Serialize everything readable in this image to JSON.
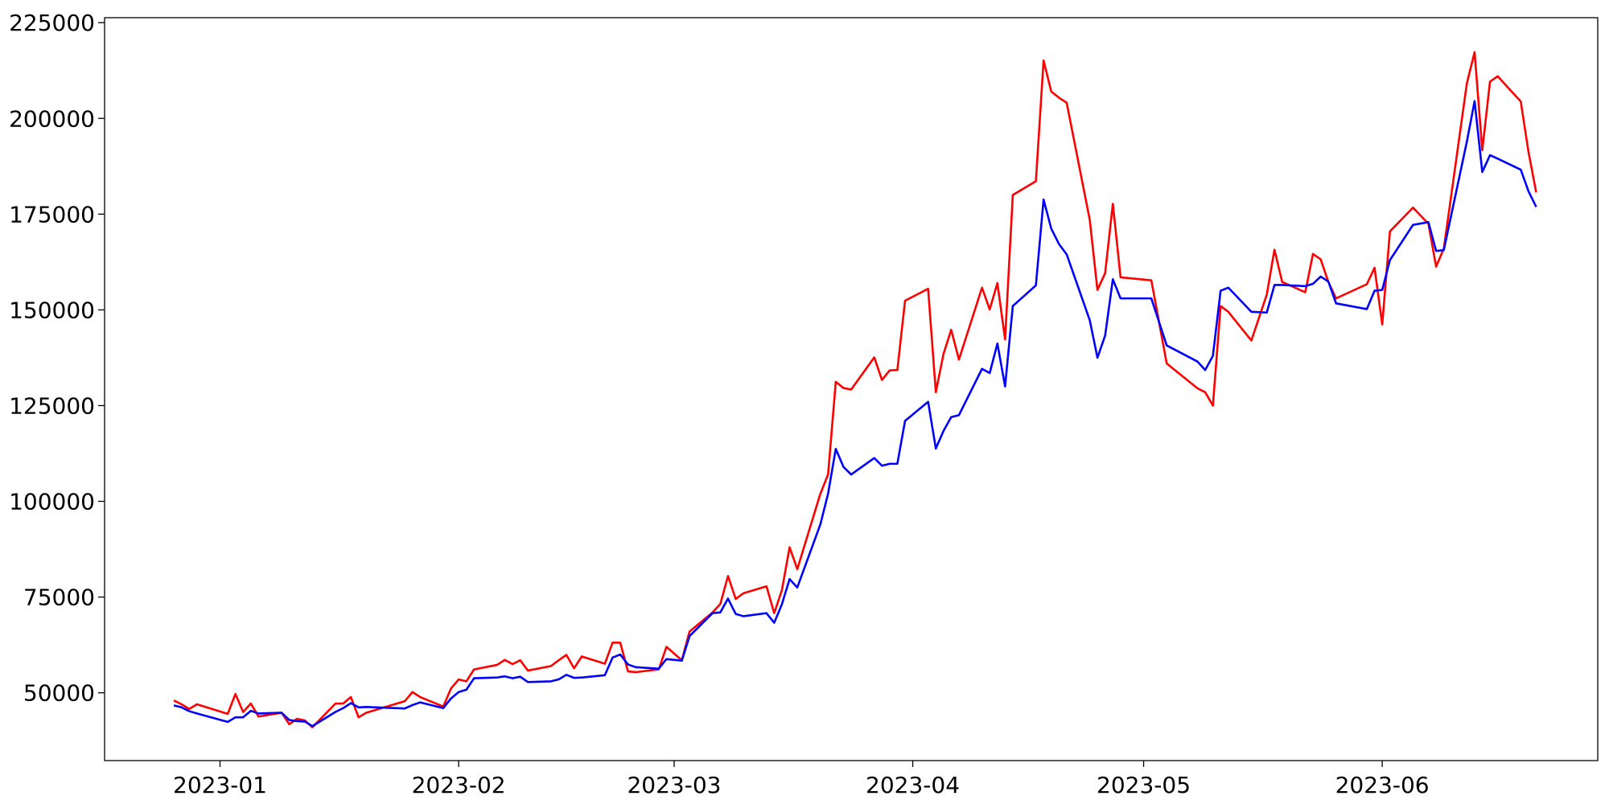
{
  "chart_data": {
    "type": "line",
    "x": [
      "2022-12-26",
      "2022-12-27",
      "2022-12-28",
      "2022-12-29",
      "2023-01-02",
      "2023-01-03",
      "2023-01-04",
      "2023-01-05",
      "2023-01-06",
      "2023-01-09",
      "2023-01-10",
      "2023-01-11",
      "2023-01-12",
      "2023-01-13",
      "2023-01-16",
      "2023-01-17",
      "2023-01-18",
      "2023-01-19",
      "2023-01-20",
      "2023-01-25",
      "2023-01-26",
      "2023-01-27",
      "2023-01-30",
      "2023-01-31",
      "2023-02-01",
      "2023-02-02",
      "2023-02-03",
      "2023-02-06",
      "2023-02-07",
      "2023-02-08",
      "2023-02-09",
      "2023-02-10",
      "2023-02-13",
      "2023-02-14",
      "2023-02-15",
      "2023-02-16",
      "2023-02-17",
      "2023-02-20",
      "2023-02-21",
      "2023-02-22",
      "2023-02-23",
      "2023-02-24",
      "2023-02-27",
      "2023-02-28",
      "2023-03-02",
      "2023-03-03",
      "2023-03-06",
      "2023-03-07",
      "2023-03-08",
      "2023-03-09",
      "2023-03-10",
      "2023-03-13",
      "2023-03-14",
      "2023-03-15",
      "2023-03-16",
      "2023-03-17",
      "2023-03-20",
      "2023-03-21",
      "2023-03-22",
      "2023-03-23",
      "2023-03-24",
      "2023-03-27",
      "2023-03-28",
      "2023-03-29",
      "2023-03-30",
      "2023-03-31",
      "2023-04-03",
      "2023-04-04",
      "2023-04-05",
      "2023-04-06",
      "2023-04-07",
      "2023-04-10",
      "2023-04-11",
      "2023-04-12",
      "2023-04-13",
      "2023-04-14",
      "2023-04-17",
      "2023-04-18",
      "2023-04-19",
      "2023-04-20",
      "2023-04-21",
      "2023-04-24",
      "2023-04-25",
      "2023-04-26",
      "2023-04-27",
      "2023-04-28",
      "2023-05-02",
      "2023-05-04",
      "2023-05-08",
      "2023-05-09",
      "2023-05-10",
      "2023-05-11",
      "2023-05-12",
      "2023-05-15",
      "2023-05-17",
      "2023-05-18",
      "2023-05-19",
      "2023-05-22",
      "2023-05-23",
      "2023-05-24",
      "2023-05-25",
      "2023-05-26",
      "2023-05-30",
      "2023-05-31",
      "2023-06-01",
      "2023-06-02",
      "2023-06-05",
      "2023-06-07",
      "2023-06-08",
      "2023-06-09",
      "2023-06-12",
      "2023-06-13",
      "2023-06-14",
      "2023-06-15",
      "2023-06-16",
      "2023-06-19",
      "2023-06-20",
      "2023-06-21"
    ],
    "series": [
      {
        "color": "#ff0000",
        "values": [
          48000,
          47000,
          45800,
          47000,
          44500,
          49700,
          45000,
          47200,
          43800,
          44800,
          41800,
          43200,
          42800,
          41000,
          47200,
          47200,
          48900,
          43600,
          44800,
          47800,
          50200,
          48900,
          46400,
          51100,
          53500,
          53000,
          56100,
          57300,
          58600,
          57500,
          58500,
          55800,
          57000,
          58500,
          59900,
          56400,
          59500,
          57600,
          63100,
          63100,
          55600,
          55400,
          56100,
          62000,
          58500,
          66000,
          71000,
          73200,
          80500,
          74500,
          76000,
          77800,
          70800,
          76800,
          88000,
          82300,
          102000,
          107000,
          131200,
          129600,
          129200,
          137600,
          131700,
          134200,
          134300,
          152400,
          155500,
          128500,
          138500,
          144800,
          137000,
          155800,
          150100,
          157000,
          142300,
          180000,
          183600,
          215100,
          207000,
          205400,
          204100,
          173500,
          155200,
          159600,
          177700,
          158500,
          157700,
          136000,
          129500,
          128500,
          125000,
          151000,
          149500,
          142000,
          154000,
          165700,
          157300,
          154600,
          164600,
          163200,
          157300,
          153000,
          156700,
          161000,
          146200,
          170500,
          176700,
          172500,
          161300,
          166000,
          209200,
          217300,
          191700,
          209600,
          211000,
          204400,
          191300,
          180700
        ]
      },
      {
        "color": "#0000ff",
        "values": [
          46700,
          46200,
          45200,
          44600,
          42400,
          43600,
          43600,
          45300,
          44600,
          44800,
          42900,
          42600,
          42500,
          41300,
          45000,
          46000,
          47300,
          46200,
          46300,
          45900,
          46800,
          47500,
          46000,
          48500,
          50200,
          50800,
          53800,
          54000,
          54300,
          53800,
          54200,
          52800,
          53000,
          53500,
          54700,
          53900,
          54000,
          54600,
          59200,
          60000,
          57400,
          56700,
          56300,
          58800,
          58400,
          64800,
          70800,
          71000,
          74600,
          70600,
          70000,
          70800,
          68300,
          73100,
          79700,
          77500,
          94000,
          102000,
          113700,
          109000,
          107000,
          111300,
          109300,
          109800,
          109800,
          121000,
          126000,
          113800,
          118400,
          122000,
          122500,
          134600,
          133500,
          141200,
          130000,
          151000,
          156400,
          178800,
          171200,
          167200,
          164500,
          147300,
          137500,
          143300,
          158000,
          153000,
          153000,
          140700,
          136500,
          134300,
          138000,
          155000,
          155800,
          149500,
          149300,
          156500,
          156500,
          156200,
          156800,
          158700,
          157400,
          151700,
          150200,
          155000,
          155200,
          163000,
          172200,
          172900,
          165400,
          165600,
          194000,
          204500,
          186000,
          190400,
          189500,
          186600,
          181000,
          176900
        ]
      }
    ],
    "xlim": [
      "2022-12-17",
      "2023-06-29"
    ],
    "xticks": [
      {
        "value": "2023-01-01",
        "label": "2023-01"
      },
      {
        "value": "2023-02-01",
        "label": "2023-02"
      },
      {
        "value": "2023-03-01",
        "label": "2023-03"
      },
      {
        "value": "2023-04-01",
        "label": "2023-04"
      },
      {
        "value": "2023-05-01",
        "label": "2023-05"
      },
      {
        "value": "2023-06-01",
        "label": "2023-06"
      }
    ],
    "ylim": [
      32300,
      226300
    ],
    "yticks": [
      50000,
      75000,
      100000,
      125000,
      150000,
      175000,
      200000,
      225000
    ],
    "grid": false
  }
}
